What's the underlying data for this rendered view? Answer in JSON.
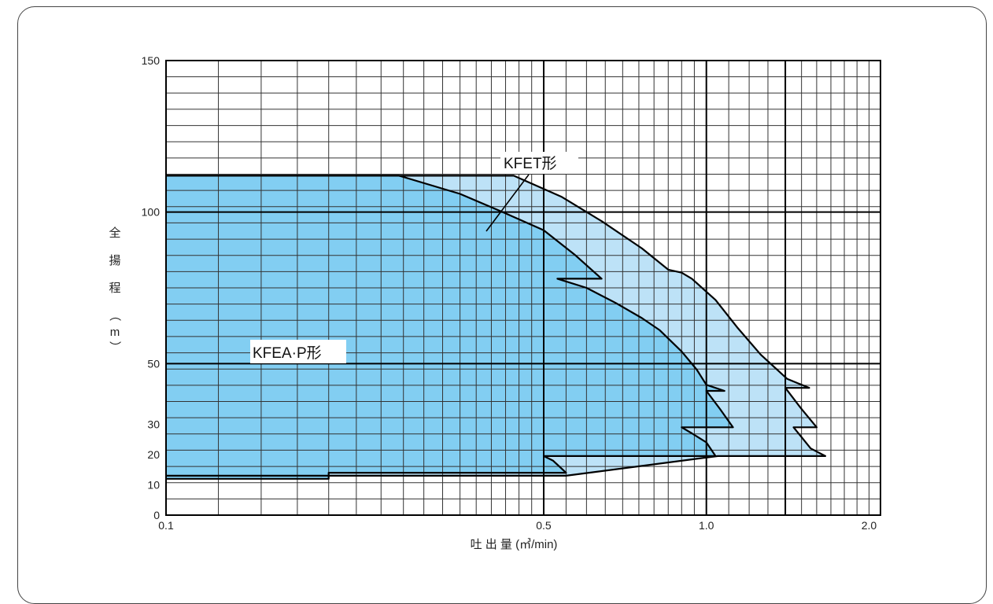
{
  "chart_data": {
    "type": "area",
    "title": "",
    "xlabel": "吐 出 量 (㎥/min)",
    "ylabel": "全揚程（m）",
    "ylabel_chars": [
      "全",
      "揚",
      "程",
      "（",
      "m",
      "）"
    ],
    "x_axis": {
      "min": 0.1,
      "max": 2.1,
      "ticks": [
        0.1,
        0.5,
        1.0,
        2.0
      ],
      "tick_labels": [
        "0.1",
        "0.5",
        "1.0",
        "2.0"
      ]
    },
    "y_axis": {
      "min": 0,
      "max": 150,
      "ticks": [
        0,
        10,
        20,
        30,
        50,
        100,
        150
      ],
      "tick_labels": [
        "0",
        "10",
        "20",
        "30",
        "50",
        "100",
        "150"
      ]
    },
    "grid": true,
    "series": [
      {
        "name": "KFET形",
        "color": "#bde2f7",
        "points": [
          [
            0.1,
            112
          ],
          [
            0.44,
            112
          ],
          [
            0.54,
            105
          ],
          [
            0.64,
            97
          ],
          [
            0.76,
            88
          ],
          [
            0.85,
            81
          ],
          [
            0.9,
            80
          ],
          [
            0.94,
            78
          ],
          [
            1.04,
            71
          ],
          [
            1.14,
            62
          ],
          [
            1.26,
            53
          ],
          [
            1.41,
            45
          ],
          [
            1.55,
            42
          ],
          [
            1.4,
            42
          ],
          [
            1.5,
            35
          ],
          [
            1.6,
            29
          ],
          [
            1.45,
            29
          ],
          [
            1.56,
            22
          ],
          [
            1.66,
            19.5
          ],
          [
            1.3,
            19.5
          ],
          [
            1.05,
            19.5
          ],
          [
            0.55,
            13
          ],
          [
            0.5,
            13
          ],
          [
            0.1,
            13
          ]
        ]
      },
      {
        "name": "KFEA·P形",
        "color": "#82cef2",
        "points": [
          [
            0.1,
            112
          ],
          [
            0.27,
            112
          ],
          [
            0.35,
            106
          ],
          [
            0.42,
            100
          ],
          [
            0.5,
            94
          ],
          [
            0.57,
            86
          ],
          [
            0.64,
            78
          ],
          [
            0.53,
            78
          ],
          [
            0.6,
            75
          ],
          [
            0.68,
            70
          ],
          [
            0.76,
            65
          ],
          [
            0.82,
            61
          ],
          [
            0.9,
            54
          ],
          [
            0.96,
            48
          ],
          [
            1.0,
            43
          ],
          [
            1.08,
            41
          ],
          [
            1.0,
            41
          ],
          [
            1.06,
            35
          ],
          [
            1.12,
            29
          ],
          [
            0.9,
            29
          ],
          [
            0.94,
            27
          ],
          [
            1.0,
            24
          ],
          [
            1.04,
            19.5
          ],
          [
            0.76,
            19.5
          ],
          [
            0.5,
            19.5
          ],
          [
            0.52,
            18
          ],
          [
            0.55,
            14
          ],
          [
            0.2,
            14
          ],
          [
            0.2,
            12
          ],
          [
            0.1,
            12
          ]
        ]
      }
    ],
    "annotations": [
      {
        "text": "KFET形",
        "points_to": [
          0.7,
          89
        ]
      },
      {
        "text": "KFEA·P形"
      }
    ]
  }
}
